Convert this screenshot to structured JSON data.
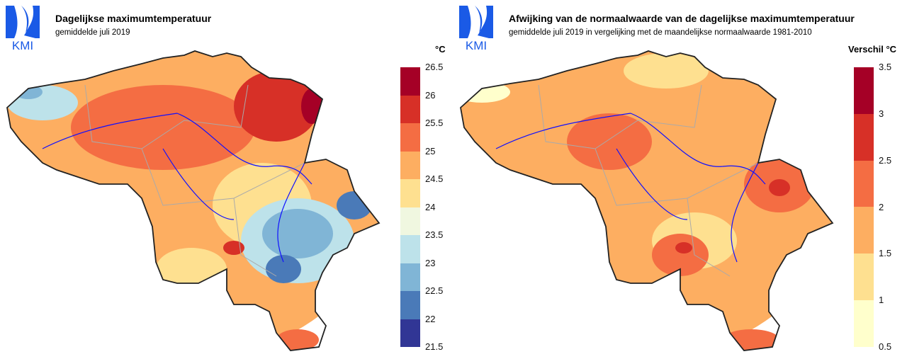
{
  "logo_text": "KMI",
  "maps": [
    {
      "title": "Dagelijkse maximumtemperatuur",
      "subtitle": "gemiddelde juli 2019",
      "unit": "°C",
      "legend": {
        "ticks": [
          "26.5",
          "26",
          "25.5",
          "25",
          "24.5",
          "24",
          "23.5",
          "23",
          "22.5",
          "22",
          "21.5"
        ],
        "colors": [
          "#a50026",
          "#d73027",
          "#f46d43",
          "#fdae61",
          "#fee090",
          "#f0f7e0",
          "#bde2ea",
          "#80b5d6",
          "#4a7ab8",
          "#313695"
        ]
      }
    },
    {
      "title": "Afwijking van de normaalwaarde van de dagelijkse maximumtemperatuur",
      "subtitle": "gemiddelde juli 2019 in vergelijking met de maandelijkse normaalwaarde 1981-2010",
      "unit": "Verschil °C",
      "legend": {
        "ticks": [
          "3.5",
          "3",
          "2.5",
          "2",
          "1.5",
          "1",
          "0.5"
        ],
        "colors": [
          "#a50026",
          "#d73027",
          "#f46d43",
          "#fdae61",
          "#fee090",
          "#ffffcc"
        ]
      }
    }
  ]
}
